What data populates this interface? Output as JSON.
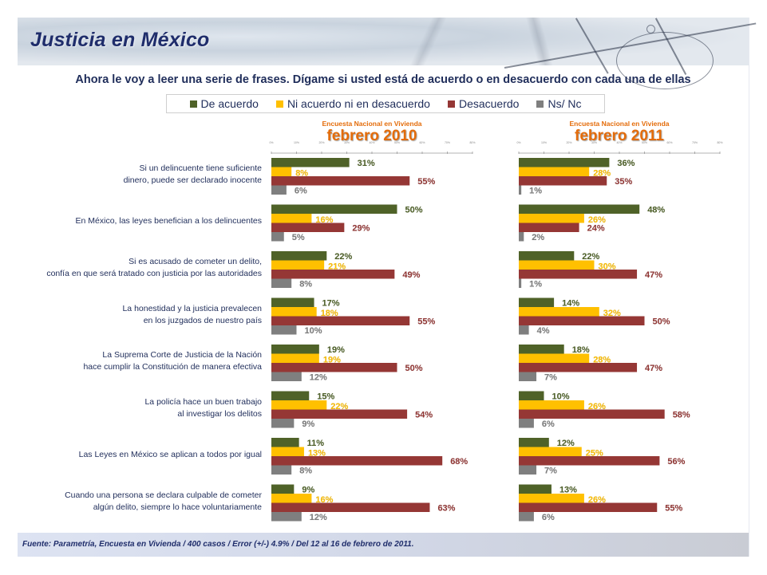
{
  "header": {
    "title": "Justicia en México",
    "question": "Ahora le voy a leer una serie de frases. Dígame si usted está de acuerdo o en desacuerdo con cada una de ellas"
  },
  "legend": [
    {
      "label": "De acuerdo",
      "color": "#4f6228"
    },
    {
      "label": "Ni acuerdo ni en desacuerdo",
      "color": "#ffc000"
    },
    {
      "label": "Desacuerdo",
      "color": "#953735"
    },
    {
      "label": "Ns/ Nc",
      "color": "#7f7f7f"
    }
  ],
  "panels": [
    {
      "subtitle": "Encuesta Nacional en Vivienda",
      "period": "febrero 2010"
    },
    {
      "subtitle": "Encuesta Nacional en Vivienda",
      "period": "febrero 2011"
    }
  ],
  "footer": "Fuente: Parametría, Encuesta en Vivienda / 400 casos / Error (+/-) 4.9% / Del 12 al 16 de febrero de 2011.",
  "chart_data": [
    {
      "type": "bar",
      "orientation": "horizontal",
      "title": "Encuesta Nacional en Vivienda febrero 2010",
      "xlim": [
        0,
        80
      ],
      "x_ticks": [
        "0%",
        "10%",
        "20%",
        "30%",
        "40%",
        "50%",
        "60%",
        "70%",
        "80%"
      ],
      "categories": [
        "Si un delincuente tiene suficiente dinero, puede ser declarado inocente",
        "En México, las leyes benefician a los delincuentes",
        "Si es acusado de cometer un delito, confía en que será tratado con justicia por las autoridades",
        "La honestidad y la justicia prevalecen en los juzgados de nuestro país",
        "La Suprema Corte de Justicia de la Nación hace cumplir la Constitución de manera efectiva",
        "La policía hace un buen trabajo al investigar los delitos",
        "Las Leyes en México se aplican a todos por igual",
        "Cuando una persona se declara culpable de cometer algún delito, siempre lo hace voluntariamente"
      ],
      "series": [
        {
          "name": "De acuerdo",
          "values": [
            31,
            50,
            22,
            17,
            19,
            15,
            11,
            9
          ]
        },
        {
          "name": "Ni acuerdo ni en desacuerdo",
          "values": [
            8,
            16,
            21,
            18,
            19,
            22,
            13,
            16
          ]
        },
        {
          "name": "Desacuerdo",
          "values": [
            55,
            29,
            49,
            55,
            50,
            54,
            68,
            63
          ]
        },
        {
          "name": "Ns/ Nc",
          "values": [
            6,
            5,
            8,
            10,
            12,
            9,
            8,
            12
          ]
        }
      ]
    },
    {
      "type": "bar",
      "orientation": "horizontal",
      "title": "Encuesta Nacional en Vivienda febrero 2011",
      "xlim": [
        0,
        80
      ],
      "x_ticks": [
        "0%",
        "10%",
        "20%",
        "30%",
        "40%",
        "50%",
        "60%",
        "70%",
        "80%"
      ],
      "categories": [
        "Si un delincuente tiene suficiente dinero, puede ser declarado inocente",
        "En México, las leyes benefician a los delincuentes",
        "Si es acusado de cometer un delito, confía en que será tratado con justicia por las autoridades",
        "La honestidad y la justicia prevalecen en los juzgados de nuestro país",
        "La Suprema Corte de Justicia de la Nación hace cumplir la Constitución de manera efectiva",
        "La policía hace un buen trabajo al investigar los delitos",
        "Las Leyes en México se aplican a todos por igual",
        "Cuando una persona se declara culpable de cometer algún delito, siempre lo hace voluntariamente"
      ],
      "series": [
        {
          "name": "De acuerdo",
          "values": [
            36,
            48,
            22,
            14,
            18,
            10,
            12,
            13
          ]
        },
        {
          "name": "Ni acuerdo ni en desacuerdo",
          "values": [
            28,
            26,
            30,
            32,
            28,
            26,
            25,
            26
          ]
        },
        {
          "name": "Desacuerdo",
          "values": [
            35,
            24,
            47,
            50,
            47,
            58,
            56,
            55
          ]
        },
        {
          "name": "Ns/ Nc",
          "values": [
            1,
            2,
            1,
            4,
            7,
            6,
            7,
            6
          ]
        }
      ]
    }
  ],
  "row_labels": [
    [
      "Si un delincuente tiene suficiente",
      "dinero, puede ser declarado inocente"
    ],
    [
      "En México, las leyes benefician a los delincuentes"
    ],
    [
      "Si es acusado de cometer un delito,",
      "confía en que será tratado con justicia por las autoridades"
    ],
    [
      "La honestidad y la justicia prevalecen",
      "en los juzgados de nuestro país"
    ],
    [
      "La Suprema Corte de Justicia de la Nación",
      "hace cumplir la Constitución de manera efectiva"
    ],
    [
      "La policía hace un buen trabajo",
      "al investigar los delitos"
    ],
    [
      "Las Leyes en México se aplican a todos por igual"
    ],
    [
      "Cuando una persona se declara culpable de cometer",
      "algún delito, siempre lo hace voluntariamente"
    ]
  ]
}
